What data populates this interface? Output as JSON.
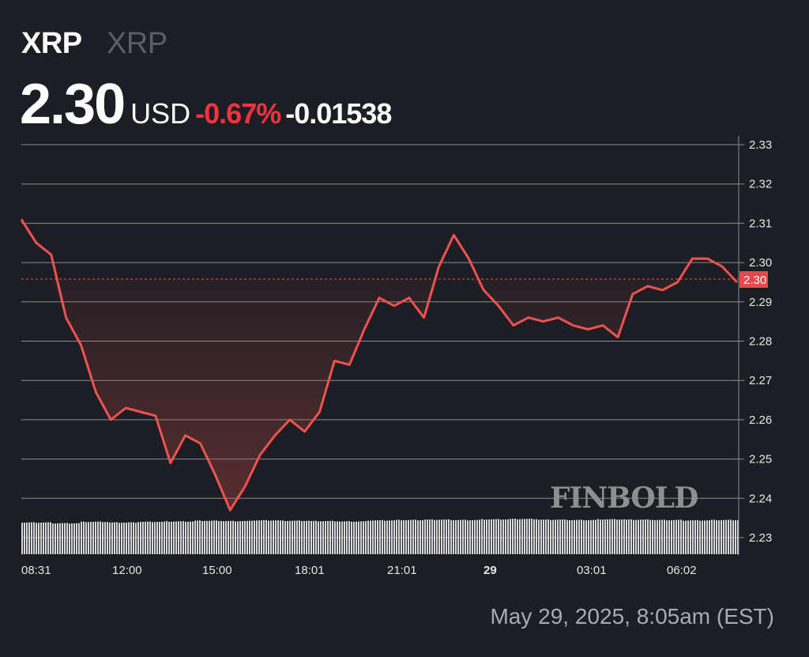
{
  "header": {
    "symbol": "XRP",
    "name": "XRP",
    "price": "2.30",
    "currency": "USD",
    "change_pct": "-0.67%",
    "change_abs": "-0.01538"
  },
  "footer": {
    "timestamp": "May 29, 2025, 8:05am (EST)"
  },
  "watermark": "FINBOLD",
  "colors": {
    "background": "#1c1e23",
    "line": "#f0524f",
    "negative": "#ef3340",
    "grid": "#8a8c90",
    "volume": "#d9d9d9",
    "price_tag_bg": "#e5484d"
  },
  "current_price_tag": "2.30",
  "chart_data": {
    "type": "line",
    "title": "XRP 2.30 USD -0.67% -0.01538",
    "xlabel": "",
    "ylabel": "",
    "ylim": [
      2.225,
      2.335
    ],
    "grid": true,
    "legend": "none",
    "y_ticks": [
      "2.33",
      "2.32",
      "2.31",
      "2.30",
      "2.29",
      "2.28",
      "2.27",
      "2.26",
      "2.25",
      "2.24",
      "2.23"
    ],
    "x_ticks": [
      "08:31",
      "12:00",
      "15:00",
      "18:01",
      "21:01",
      "29",
      "03:01",
      "06:02"
    ],
    "reference_line": 2.2958,
    "x": [
      "08:31",
      "09:00",
      "09:30",
      "10:00",
      "10:30",
      "11:00",
      "11:30",
      "12:00",
      "12:30",
      "13:00",
      "13:30",
      "14:00",
      "14:30",
      "15:00",
      "15:30",
      "16:00",
      "16:30",
      "17:00",
      "17:30",
      "18:00",
      "18:30",
      "19:00",
      "19:30",
      "20:00",
      "20:30",
      "21:00",
      "21:30",
      "22:00",
      "22:30",
      "23:00",
      "23:30",
      "00:00",
      "00:30",
      "01:00",
      "01:30",
      "02:00",
      "02:30",
      "03:00",
      "03:30",
      "04:00",
      "04:30",
      "05:00",
      "05:30",
      "06:00",
      "06:30",
      "07:00",
      "07:30",
      "08:00",
      "08:05"
    ],
    "series": [
      {
        "name": "XRP/USD",
        "values": [
          2.311,
          2.305,
          2.302,
          2.286,
          2.279,
          2.267,
          2.26,
          2.263,
          2.262,
          2.261,
          2.249,
          2.256,
          2.254,
          2.246,
          2.237,
          2.243,
          2.251,
          2.256,
          2.26,
          2.257,
          2.262,
          2.275,
          2.274,
          2.283,
          2.291,
          2.289,
          2.291,
          2.286,
          2.299,
          2.307,
          2.301,
          2.293,
          2.289,
          2.284,
          2.286,
          2.285,
          2.286,
          2.284,
          2.283,
          2.284,
          2.281,
          2.292,
          2.294,
          2.293,
          2.295,
          2.301,
          2.301,
          2.299,
          2.295
        ]
      }
    ],
    "volume": {
      "note": "Relative volume bars along bottom of chart, roughly uniform height",
      "relative_heights": [
        0.9,
        0.88,
        0.92,
        0.9,
        0.92,
        0.93,
        0.95,
        0.94,
        0.96,
        0.95,
        0.94,
        0.93,
        0.96,
        0.97,
        0.98,
        0.97,
        0.99,
        1.0,
        0.98,
        0.97,
        0.99,
        0.98,
        0.97,
        0.96,
        0.97
      ]
    }
  }
}
